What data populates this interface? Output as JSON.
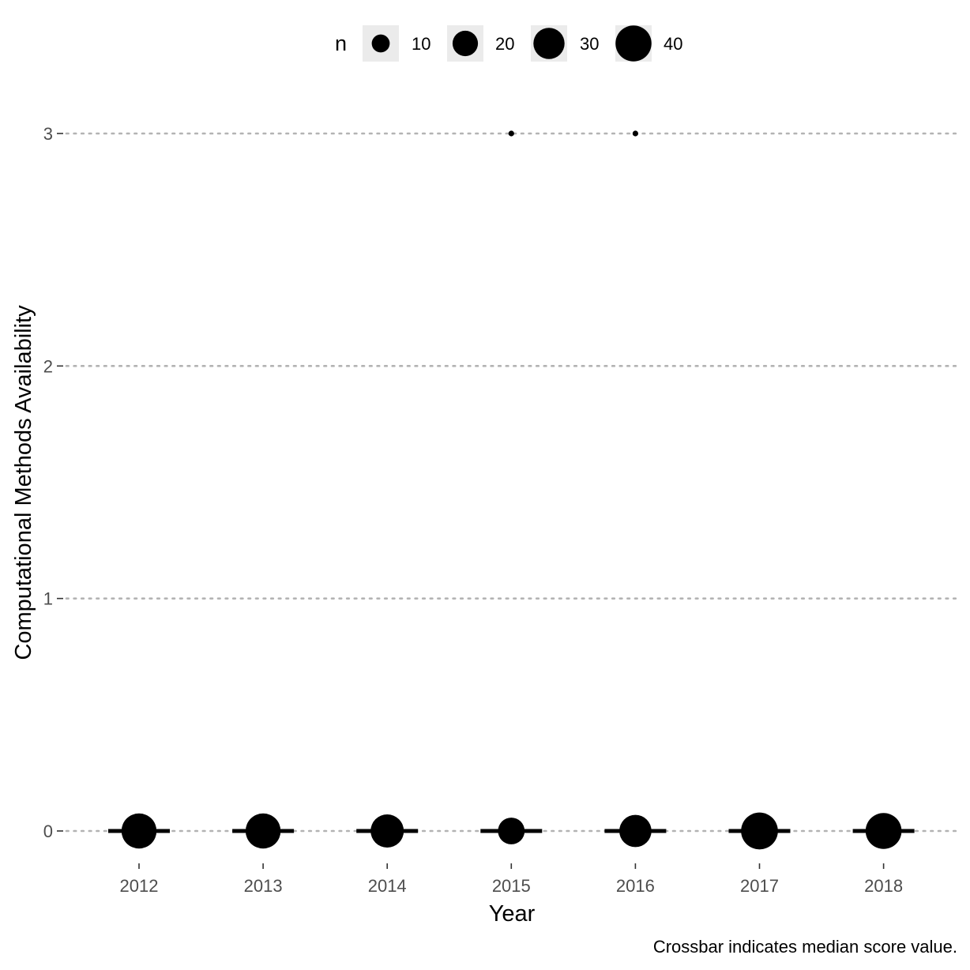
{
  "chart_data": {
    "type": "scatter",
    "title": "",
    "xlabel": "Year",
    "ylabel": "Computational Methods Availability",
    "caption": "Crossbar indicates median score value.",
    "x_categories": [
      "2012",
      "2013",
      "2014",
      "2015",
      "2016",
      "2017",
      "2018"
    ],
    "y_ticks": [
      "0",
      "1",
      "2",
      "3"
    ],
    "ylim": [
      -0.13,
      3.13
    ],
    "grid": "horizontal dotted major lines",
    "legend": {
      "title": "n",
      "position": "top",
      "entries": [
        {
          "label": "10",
          "value": 10
        },
        {
          "label": "20",
          "value": 20
        },
        {
          "label": "30",
          "value": 30
        },
        {
          "label": "40",
          "value": 40
        }
      ]
    },
    "points": [
      {
        "x": "2012",
        "y": 0,
        "n": 38
      },
      {
        "x": "2013",
        "y": 0,
        "n": 38
      },
      {
        "x": "2014",
        "y": 0,
        "n": 34
      },
      {
        "x": "2015",
        "y": 0,
        "n": 22
      },
      {
        "x": "2015",
        "y": 3,
        "n": 1
      },
      {
        "x": "2016",
        "y": 0,
        "n": 32
      },
      {
        "x": "2016",
        "y": 3,
        "n": 1
      },
      {
        "x": "2017",
        "y": 0,
        "n": 42
      },
      {
        "x": "2018",
        "y": 0,
        "n": 40
      }
    ],
    "medians": [
      {
        "x": "2012",
        "y": 0
      },
      {
        "x": "2013",
        "y": 0
      },
      {
        "x": "2014",
        "y": 0
      },
      {
        "x": "2015",
        "y": 0
      },
      {
        "x": "2016",
        "y": 0
      },
      {
        "x": "2017",
        "y": 0
      },
      {
        "x": "2018",
        "y": 0
      }
    ],
    "colors": {
      "point": "#000000",
      "crossbar": "#000000",
      "grid": "#b3b3b3",
      "legend_key_bg": "#ebebeb",
      "tick_label": "#4d4d4d"
    }
  }
}
